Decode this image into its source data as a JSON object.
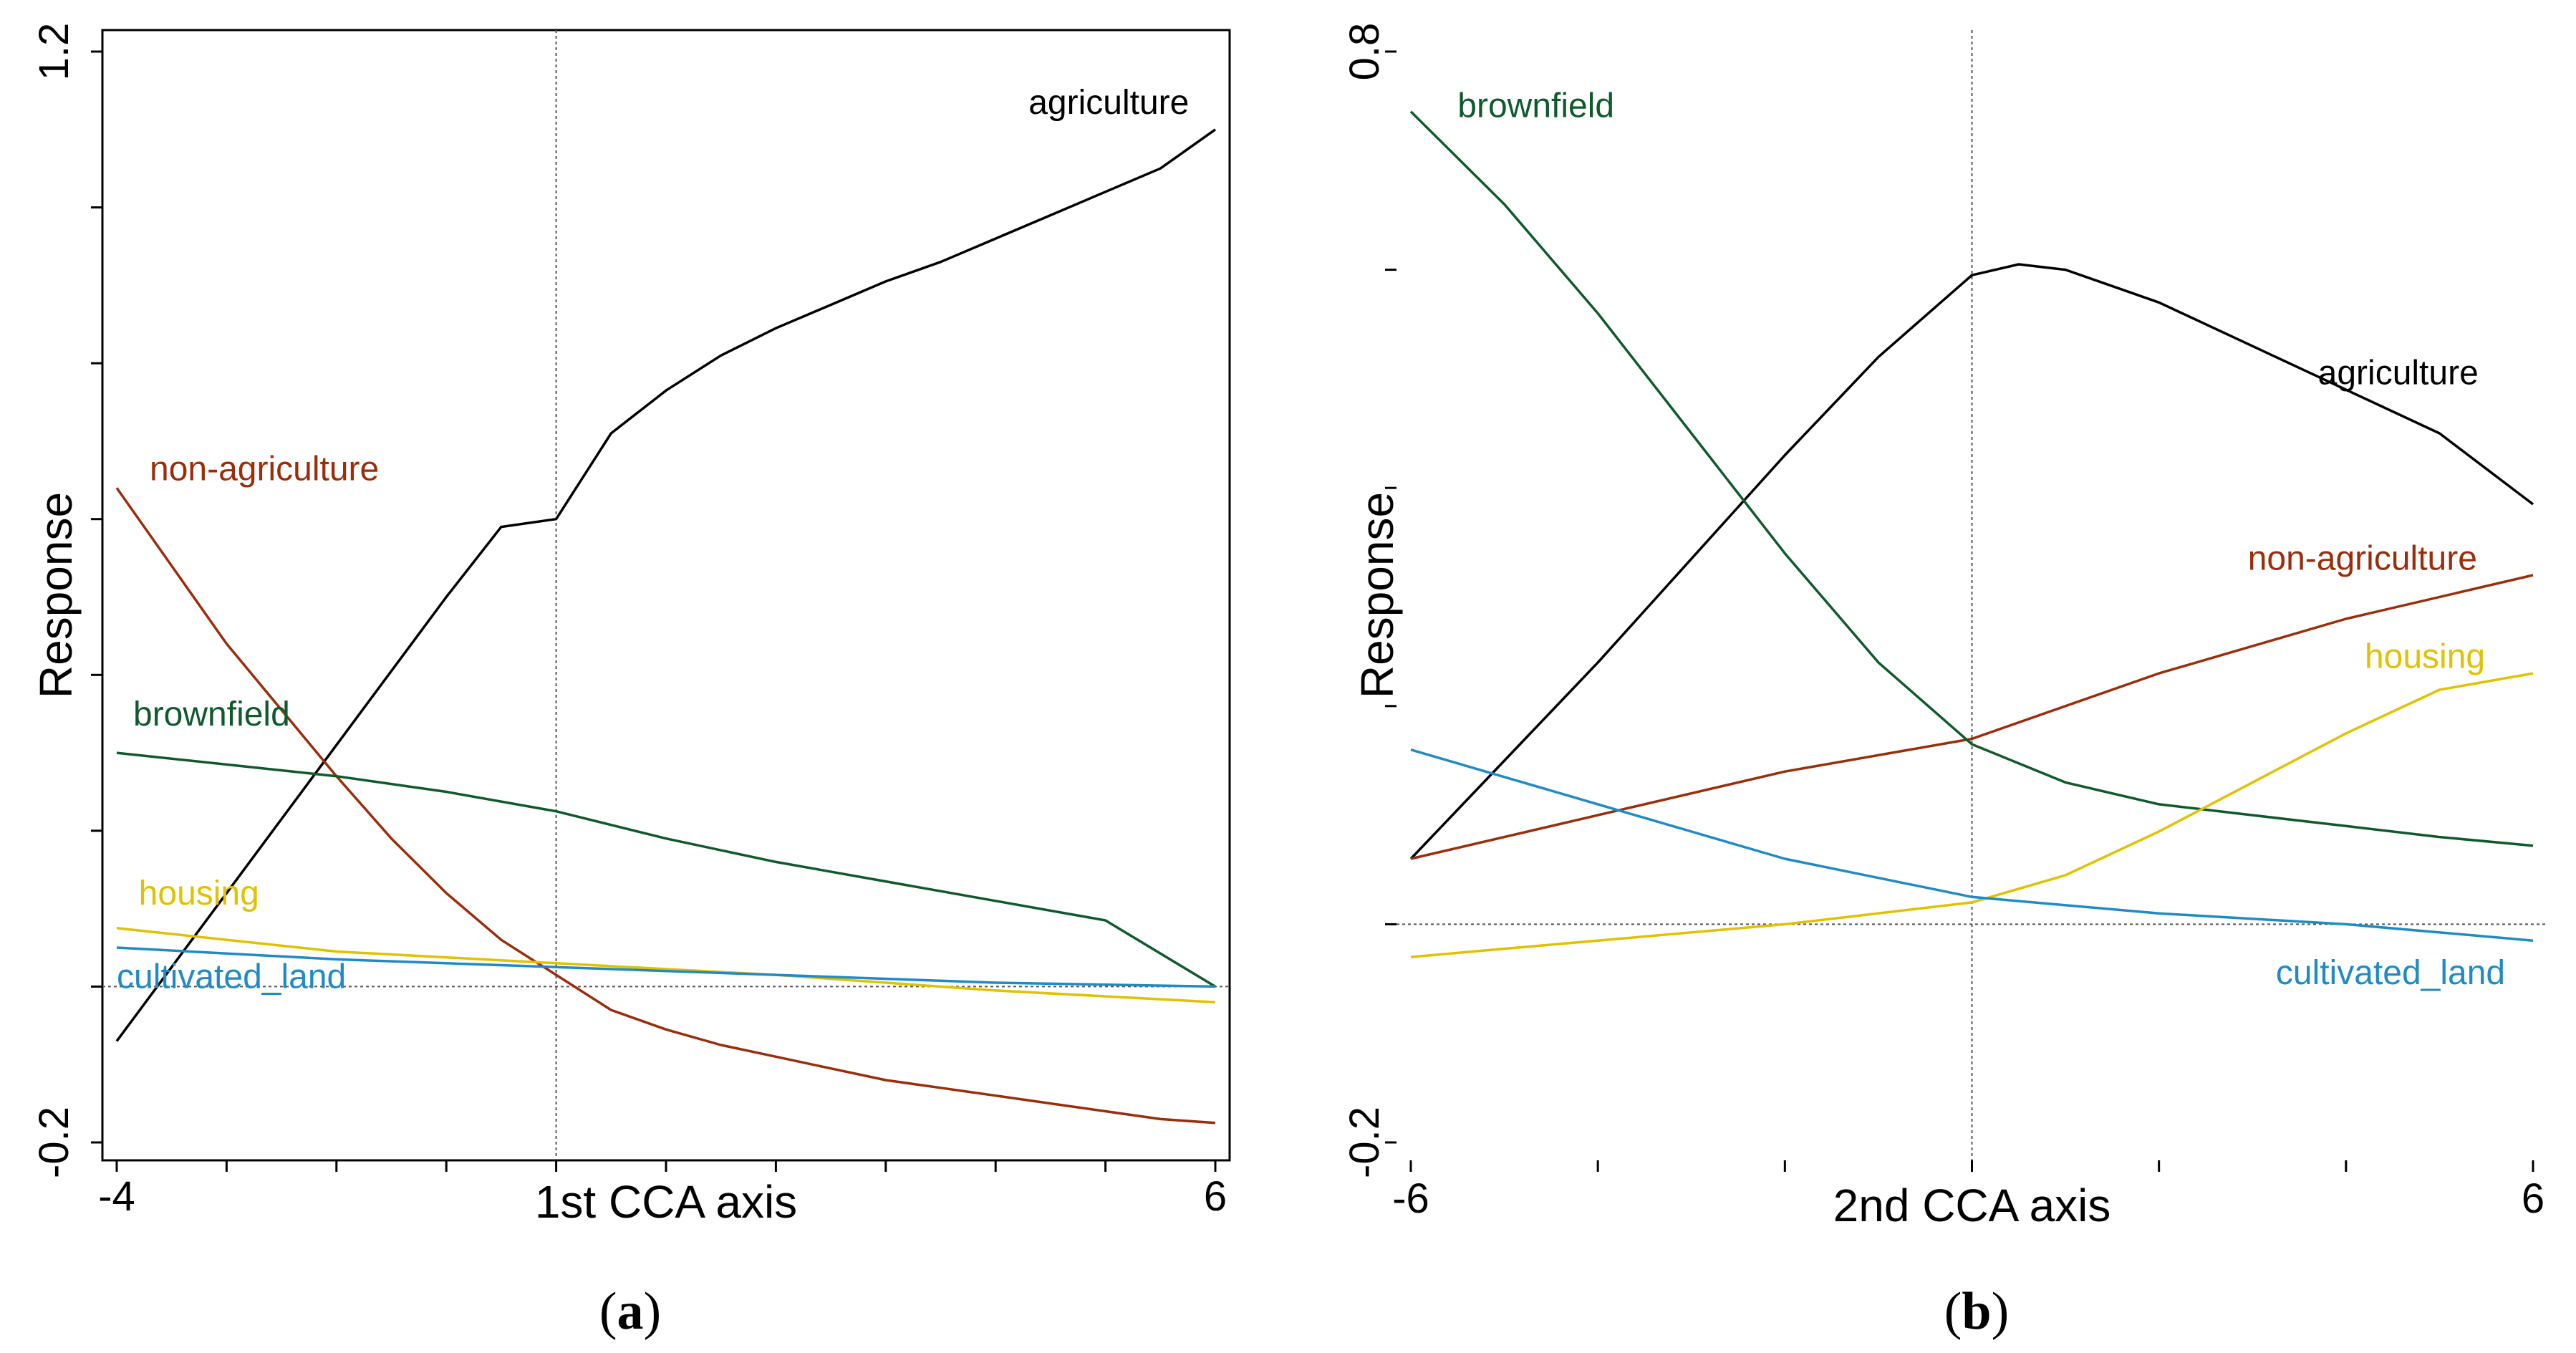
{
  "colors": {
    "agriculture": "#000000",
    "non_agriculture": "#9b2d0a",
    "brownfield": "#0f5a2d",
    "housing": "#e0c200",
    "cultivated_land": "#1f8bc6"
  },
  "chart_data": [
    {
      "type": "line",
      "panel": "a",
      "caption_letter": "a",
      "caption_open": "(",
      "caption_close": ")",
      "xlabel": "1st CCA axis",
      "ylabel": "Response",
      "xlim": [
        -4,
        6
      ],
      "ylim": [
        -0.2,
        1.2
      ],
      "x_tick_labels": [
        "-4",
        "6"
      ],
      "y_tick_labels": [
        "-0.2",
        "1.2"
      ],
      "x_minor_ticks": [
        -4,
        -3,
        -2,
        -1,
        0,
        1,
        2,
        3,
        4,
        5,
        6
      ],
      "y_minor_ticks": [
        -0.2,
        0,
        0.2,
        0.4,
        0.6,
        0.8,
        1.0,
        1.2
      ],
      "reference_lines": {
        "x": 0,
        "y": 0
      },
      "series": [
        {
          "name": "agriculture",
          "color_key": "agriculture",
          "x": [
            -4,
            -3.5,
            -3,
            -2.5,
            -2,
            -1.5,
            -1,
            -0.5,
            0,
            0.5,
            1,
            1.5,
            2,
            2.5,
            3,
            3.5,
            4,
            4.5,
            5,
            5.5,
            6
          ],
          "y": [
            -0.07,
            0.025,
            0.12,
            0.215,
            0.31,
            0.405,
            0.5,
            0.59,
            0.6,
            0.71,
            0.765,
            0.81,
            0.845,
            0.875,
            0.905,
            0.93,
            0.96,
            0.99,
            1.02,
            1.05,
            1.1
          ],
          "label": {
            "text": "agriculture",
            "x": 4.3,
            "y": 1.12,
            "anchor": "start"
          }
        },
        {
          "name": "non-agriculture",
          "color_key": "non_agriculture",
          "x": [
            -4,
            -3.5,
            -3,
            -2.5,
            -2,
            -1.5,
            -1,
            -0.5,
            0,
            0.5,
            1,
            1.5,
            2,
            2.5,
            3,
            3.5,
            4,
            4.5,
            5,
            5.5,
            6
          ],
          "y": [
            0.64,
            0.54,
            0.44,
            0.355,
            0.27,
            0.19,
            0.12,
            0.06,
            0.015,
            -0.03,
            -0.055,
            -0.075,
            -0.09,
            -0.105,
            -0.12,
            -0.13,
            -0.14,
            -0.15,
            -0.16,
            -0.17,
            -0.175
          ],
          "label": {
            "text": "non-agriculture",
            "x": -3.7,
            "y": 0.65,
            "anchor": "start"
          }
        },
        {
          "name": "brownfield",
          "color_key": "brownfield",
          "x": [
            -4,
            -3,
            -2,
            -1,
            0,
            1,
            2,
            3,
            4,
            5,
            6
          ],
          "y": [
            0.3,
            0.285,
            0.27,
            0.25,
            0.225,
            0.19,
            0.16,
            0.135,
            0.11,
            0.085,
            0.0
          ],
          "label": {
            "text": "brownfield",
            "x": -3.85,
            "y": 0.335,
            "anchor": "start"
          }
        },
        {
          "name": "housing",
          "color_key": "housing",
          "x": [
            -4,
            -2,
            0,
            2,
            4,
            6
          ],
          "y": [
            0.075,
            0.045,
            0.03,
            0.015,
            -0.005,
            -0.02
          ],
          "label": {
            "text": "housing",
            "x": -3.8,
            "y": 0.105,
            "anchor": "start"
          }
        },
        {
          "name": "cultivated_land",
          "color_key": "cultivated_land",
          "x": [
            -4,
            -2,
            0,
            2,
            4,
            6
          ],
          "y": [
            0.05,
            0.035,
            0.025,
            0.015,
            0.005,
            0.0
          ],
          "label": {
            "text": "cultivated_land",
            "x": -4.0,
            "y": -0.002,
            "anchor": "start"
          }
        }
      ]
    },
    {
      "type": "line",
      "panel": "b",
      "caption_letter": "b",
      "caption_open": "(",
      "caption_close": ")",
      "xlabel": "2nd CCA axis",
      "ylabel": "Response",
      "xlim": [
        -6,
        6
      ],
      "ylim": [
        -0.2,
        0.8
      ],
      "x_tick_labels": [
        "-6",
        "6"
      ],
      "y_tick_labels": [
        "-0.2",
        "0.8"
      ],
      "x_minor_ticks": [
        -6,
        -4,
        -2,
        0,
        2,
        4,
        6
      ],
      "y_minor_ticks": [
        -0.2,
        0,
        0.2,
        0.4,
        0.6,
        0.8
      ],
      "reference_lines": {
        "x": 0,
        "y": 0
      },
      "series": [
        {
          "name": "agriculture",
          "color_key": "agriculture",
          "x": [
            -6,
            -5,
            -4,
            -3,
            -2,
            -1,
            0,
            0.5,
            1,
            2,
            3,
            4,
            5,
            6
          ],
          "y": [
            0.06,
            0.15,
            0.24,
            0.335,
            0.43,
            0.52,
            0.595,
            0.605,
            0.6,
            0.57,
            0.53,
            0.49,
            0.45,
            0.385
          ],
          "label": {
            "text": "agriculture",
            "x": 3.7,
            "y": 0.495,
            "anchor": "start"
          }
        },
        {
          "name": "non-agriculture",
          "color_key": "non_agriculture",
          "x": [
            -6,
            -4,
            -2,
            0,
            2,
            4,
            6
          ],
          "y": [
            0.06,
            0.1,
            0.14,
            0.17,
            0.23,
            0.28,
            0.32
          ],
          "label": {
            "text": "non-agriculture",
            "x": 2.95,
            "y": 0.325,
            "anchor": "start"
          }
        },
        {
          "name": "brownfield",
          "color_key": "brownfield",
          "x": [
            -6,
            -5,
            -4,
            -3,
            -2,
            -1,
            0,
            1,
            2,
            3,
            4,
            5,
            6
          ],
          "y": [
            0.745,
            0.66,
            0.56,
            0.45,
            0.34,
            0.24,
            0.165,
            0.13,
            0.11,
            0.1,
            0.09,
            0.08,
            0.072
          ],
          "label": {
            "text": "brownfield",
            "x": -5.5,
            "y": 0.74,
            "anchor": "start"
          }
        },
        {
          "name": "housing",
          "color_key": "housing",
          "x": [
            -6,
            -4,
            -2,
            0,
            1,
            2,
            3,
            4,
            5,
            6
          ],
          "y": [
            -0.03,
            -0.015,
            0.0,
            0.02,
            0.045,
            0.085,
            0.13,
            0.175,
            0.215,
            0.23
          ],
          "label": {
            "text": "housing",
            "x": 4.2,
            "y": 0.235,
            "anchor": "start"
          }
        },
        {
          "name": "cultivated_land",
          "color_key": "cultivated_land",
          "x": [
            -6,
            -4,
            -2,
            0,
            2,
            4,
            6
          ],
          "y": [
            0.16,
            0.11,
            0.06,
            0.025,
            0.01,
            0.0,
            -0.015
          ],
          "label": {
            "text": "cultivated_land",
            "x": 3.25,
            "y": -0.055,
            "anchor": "start"
          }
        }
      ]
    }
  ]
}
